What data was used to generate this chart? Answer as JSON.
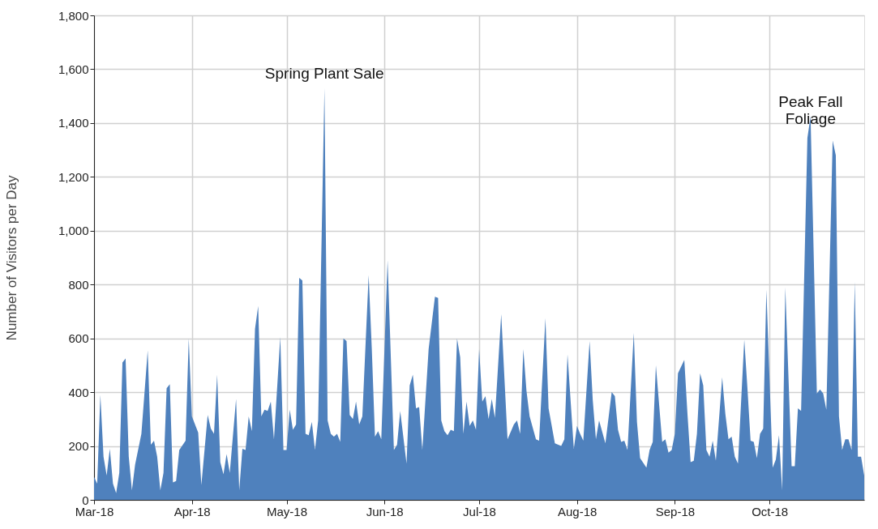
{
  "chart_data": {
    "type": "area",
    "ylabel": "Number of Visitors per Day",
    "x": [
      "2018-03-01",
      "2018-03-02",
      "2018-03-03",
      "2018-03-04",
      "2018-03-05",
      "2018-03-06",
      "2018-03-07",
      "2018-03-08",
      "2018-03-09",
      "2018-03-10",
      "2018-03-11",
      "2018-03-12",
      "2018-03-13",
      "2018-03-14",
      "2018-03-16",
      "2018-03-18",
      "2018-03-19",
      "2018-03-20",
      "2018-03-21",
      "2018-03-22",
      "2018-03-23",
      "2018-03-24",
      "2018-03-25",
      "2018-03-26",
      "2018-03-27",
      "2018-03-28",
      "2018-03-30",
      "2018-03-31",
      "2018-04-01",
      "2018-04-03",
      "2018-04-04",
      "2018-04-06",
      "2018-04-07",
      "2018-04-08",
      "2018-04-09",
      "2018-04-10",
      "2018-04-11",
      "2018-04-12",
      "2018-04-13",
      "2018-04-15",
      "2018-04-16",
      "2018-04-17",
      "2018-04-18",
      "2018-04-19",
      "2018-04-20",
      "2018-04-21",
      "2018-04-22",
      "2018-04-23",
      "2018-04-24",
      "2018-04-25",
      "2018-04-26",
      "2018-04-27",
      "2018-04-29",
      "2018-04-30",
      "2018-05-01",
      "2018-05-02",
      "2018-05-03",
      "2018-05-04",
      "2018-05-05",
      "2018-05-06",
      "2018-05-07",
      "2018-05-08",
      "2018-05-09",
      "2018-05-10",
      "2018-05-11",
      "2018-05-13",
      "2018-05-14",
      "2018-05-15",
      "2018-05-16",
      "2018-05-17",
      "2018-05-18",
      "2018-05-19",
      "2018-05-20",
      "2018-05-21",
      "2018-05-22",
      "2018-05-23",
      "2018-05-24",
      "2018-05-25",
      "2018-05-27",
      "2018-05-28",
      "2018-05-29",
      "2018-05-30",
      "2018-05-31",
      "2018-06-02",
      "2018-06-04",
      "2018-06-05",
      "2018-06-06",
      "2018-06-08",
      "2018-06-09",
      "2018-06-10",
      "2018-06-11",
      "2018-06-12",
      "2018-06-13",
      "2018-06-15",
      "2018-06-17",
      "2018-06-18",
      "2018-06-19",
      "2018-06-20",
      "2018-06-21",
      "2018-06-22",
      "2018-06-23",
      "2018-06-24",
      "2018-06-25",
      "2018-06-26",
      "2018-06-27",
      "2018-06-28",
      "2018-06-29",
      "2018-06-30",
      "2018-07-01",
      "2018-07-02",
      "2018-07-03",
      "2018-07-04",
      "2018-07-05",
      "2018-07-06",
      "2018-07-08",
      "2018-07-09",
      "2018-07-10",
      "2018-07-12",
      "2018-07-13",
      "2018-07-14",
      "2018-07-15",
      "2018-07-16",
      "2018-07-17",
      "2018-07-19",
      "2018-07-20",
      "2018-07-22",
      "2018-07-23",
      "2018-07-25",
      "2018-07-27",
      "2018-07-28",
      "2018-07-29",
      "2018-07-31",
      "2018-08-01",
      "2018-08-02",
      "2018-08-03",
      "2018-08-05",
      "2018-08-06",
      "2018-08-07",
      "2018-08-08",
      "2018-08-10",
      "2018-08-12",
      "2018-08-13",
      "2018-08-14",
      "2018-08-15",
      "2018-08-16",
      "2018-08-17",
      "2018-08-19",
      "2018-08-20",
      "2018-08-21",
      "2018-08-23",
      "2018-08-24",
      "2018-08-25",
      "2018-08-26",
      "2018-08-28",
      "2018-08-29",
      "2018-08-30",
      "2018-08-31",
      "2018-09-01",
      "2018-09-02",
      "2018-09-04",
      "2018-09-05",
      "2018-09-06",
      "2018-09-07",
      "2018-09-08",
      "2018-09-09",
      "2018-09-10",
      "2018-09-11",
      "2018-09-12",
      "2018-09-13",
      "2018-09-14",
      "2018-09-16",
      "2018-09-17",
      "2018-09-18",
      "2018-09-19",
      "2018-09-20",
      "2018-09-21",
      "2018-09-23",
      "2018-09-24",
      "2018-09-25",
      "2018-09-26",
      "2018-09-27",
      "2018-09-28",
      "2018-09-29",
      "2018-09-30",
      "2018-10-02",
      "2018-10-03",
      "2018-10-04",
      "2018-10-05",
      "2018-10-06",
      "2018-10-08",
      "2018-10-09",
      "2018-10-10",
      "2018-10-11",
      "2018-10-13",
      "2018-10-14",
      "2018-10-16",
      "2018-10-17",
      "2018-10-18",
      "2018-10-19",
      "2018-10-21",
      "2018-10-22",
      "2018-10-23",
      "2018-10-24",
      "2018-10-25",
      "2018-10-26",
      "2018-10-27",
      "2018-10-28",
      "2018-10-29",
      "2018-10-30",
      "2018-10-31"
    ],
    "series": [
      {
        "color": "#4f81bd",
        "values": [
          85,
          60,
          390,
          160,
          90,
          190,
          60,
          25,
          100,
          510,
          525,
          160,
          35,
          130,
          245,
          555,
          205,
          220,
          160,
          35,
          100,
          415,
          430,
          65,
          70,
          185,
          220,
          600,
          310,
          250,
          55,
          315,
          265,
          245,
          465,
          140,
          95,
          170,
          100,
          375,
          35,
          190,
          185,
          310,
          255,
          635,
          720,
          310,
          335,
          330,
          365,
          225,
          605,
          185,
          185,
          335,
          260,
          280,
          825,
          815,
          245,
          240,
          290,
          185,
          295,
          1530,
          295,
          245,
          235,
          245,
          215,
          600,
          590,
          315,
          300,
          365,
          280,
          310,
          835,
          560,
          235,
          255,
          225,
          890,
          185,
          205,
          330,
          135,
          425,
          465,
          340,
          345,
          185,
          560,
          755,
          750,
          295,
          255,
          240,
          260,
          255,
          600,
          530,
          245,
          365,
          275,
          295,
          260,
          560,
          365,
          385,
          300,
          375,
          305,
          690,
          455,
          225,
          280,
          295,
          245,
          560,
          405,
          310,
          225,
          220,
          675,
          340,
          210,
          200,
          225,
          540,
          190,
          275,
          245,
          220,
          590,
          370,
          225,
          295,
          210,
          400,
          385,
          260,
          215,
          220,
          185,
          620,
          290,
          155,
          120,
          185,
          215,
          500,
          215,
          225,
          175,
          185,
          245,
          470,
          520,
          320,
          140,
          145,
          245,
          470,
          425,
          185,
          160,
          220,
          145,
          455,
          320,
          225,
          235,
          160,
          135,
          595,
          415,
          220,
          215,
          155,
          245,
          265,
          780,
          120,
          150,
          240,
          35,
          790,
          125,
          125,
          340,
          330,
          1345,
          1425,
          395,
          410,
          395,
          335,
          1335,
          1280,
          310,
          185,
          225,
          225,
          185,
          810,
          160,
          160,
          90
        ]
      }
    ],
    "xlim": [
      "2018-03-01",
      "2018-10-31"
    ],
    "xticks": [
      {
        "value": "2018-03-01",
        "label": "Mar-18"
      },
      {
        "value": "2018-04-01",
        "label": "Apr-18"
      },
      {
        "value": "2018-05-01",
        "label": "May-18"
      },
      {
        "value": "2018-06-01",
        "label": "Jun-18"
      },
      {
        "value": "2018-07-01",
        "label": "Jul-18"
      },
      {
        "value": "2018-08-01",
        "label": "Aug-18"
      },
      {
        "value": "2018-09-01",
        "label": "Sep-18"
      },
      {
        "value": "2018-10-01",
        "label": "Oct-18"
      }
    ],
    "ylim": [
      0,
      1800
    ],
    "yticks": [
      0,
      {
        "value": 200,
        "label": "200"
      },
      {
        "value": 400,
        "label": "400"
      },
      {
        "value": 600,
        "label": "600"
      },
      {
        "value": 800,
        "label": "800"
      },
      {
        "value": 1000,
        "label": "1,000"
      },
      {
        "value": 1200,
        "label": "1,200"
      },
      {
        "value": 1400,
        "label": "1,400"
      },
      {
        "value": 1600,
        "label": "1,600"
      },
      {
        "value": 1800,
        "label": "1,800"
      }
    ],
    "grid": true,
    "annotations": [
      {
        "text": "Spring Plant Sale",
        "x": "2018-05-13",
        "y": 1530
      },
      {
        "text": "Peak Fall\nFoliage",
        "x": "2018-10-14",
        "y": 1425
      }
    ]
  }
}
